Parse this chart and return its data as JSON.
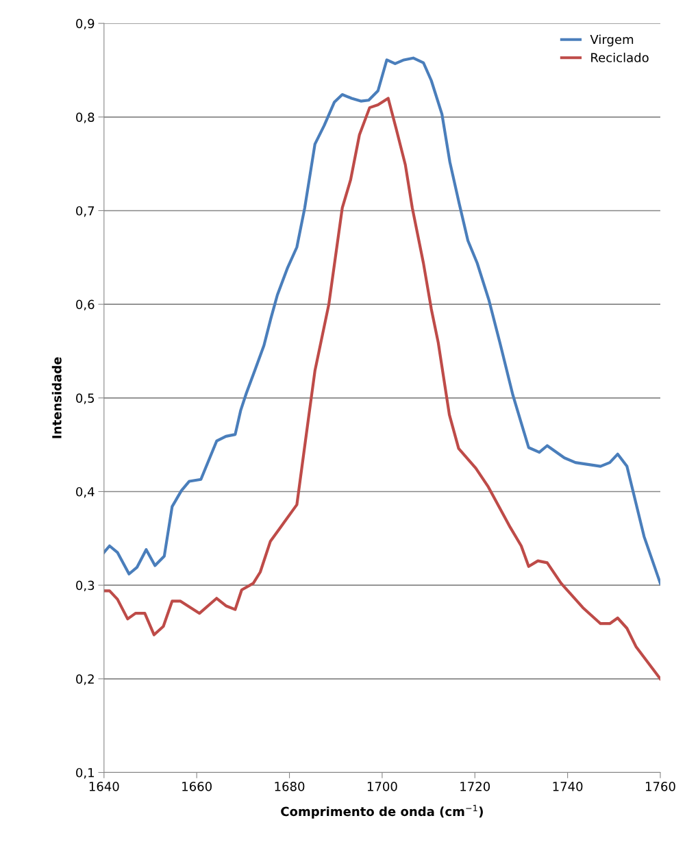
{
  "chart_data": {
    "type": "line",
    "xlabel": "Comprimento de onda (cm$^{−1}$)",
    "ylabel": "Intensidade",
    "xlim": [
      1640,
      1760
    ],
    "xticks": [
      1640,
      1660,
      1680,
      1700,
      1720,
      1740,
      1760
    ],
    "ylim": [
      0.1,
      0.9
    ],
    "yticks": [
      {
        "value": 0.1,
        "label": "0,1"
      },
      {
        "value": 0.2,
        "label": "0,2"
      },
      {
        "value": 0.3,
        "label": "0,3"
      },
      {
        "value": 0.4,
        "label": "0,4"
      },
      {
        "value": 0.5,
        "label": "0,5"
      },
      {
        "value": 0.6,
        "label": "0,6"
      },
      {
        "value": 0.7,
        "label": "0,7"
      },
      {
        "value": 0.8,
        "label": "0,8"
      },
      {
        "value": 0.9,
        "label": "0,9"
      }
    ],
    "grid": "y",
    "legend": "top right",
    "marker": "none",
    "line_style": "solid",
    "series": [
      {
        "name": "Virgem",
        "color": "#4a7ebb",
        "x": [
          1640,
          1641.2,
          1642.9,
          1645.4,
          1647.1,
          1649.1,
          1651.0,
          1653.0,
          1654.7,
          1656.7,
          1658.4,
          1660.9,
          1664.3,
          1666.3,
          1668.3,
          1669.5,
          1670.7,
          1672.5,
          1674.5,
          1676.0,
          1677.4,
          1679.6,
          1681.6,
          1683.3,
          1685.5,
          1687.5,
          1689.7,
          1691.4,
          1693.4,
          1695.4,
          1697.1,
          1699.1,
          1701.0,
          1702.8,
          1704.7,
          1706.7,
          1708.9,
          1710.6,
          1712.9,
          1714.6,
          1716.6,
          1718.5,
          1720.5,
          1723.0,
          1725.4,
          1728.2,
          1731.6,
          1733.9,
          1735.6,
          1739.3,
          1741.7,
          1747.1,
          1749.1,
          1750.8,
          1752.8,
          1756.5,
          1760
        ],
        "values": [
          0.335,
          0.342,
          0.335,
          0.312,
          0.319,
          0.338,
          0.321,
          0.331,
          0.384,
          0.401,
          0.411,
          0.413,
          0.454,
          0.459,
          0.461,
          0.487,
          0.505,
          0.529,
          0.556,
          0.585,
          0.61,
          0.639,
          0.661,
          0.703,
          0.771,
          0.791,
          0.816,
          0.824,
          0.82,
          0.817,
          0.818,
          0.828,
          0.861,
          0.857,
          0.861,
          0.863,
          0.858,
          0.839,
          0.803,
          0.752,
          0.708,
          0.668,
          0.644,
          0.605,
          0.559,
          0.503,
          0.447,
          0.442,
          0.449,
          0.436,
          0.431,
          0.427,
          0.431,
          0.44,
          0.427,
          0.352,
          0.302
        ]
      },
      {
        "name": "Reciclado",
        "color": "#be4b48",
        "x": [
          1640,
          1641.2,
          1642.9,
          1645.1,
          1646.8,
          1648.8,
          1650.8,
          1652.8,
          1654.7,
          1656.5,
          1660.6,
          1664.3,
          1666.3,
          1668.3,
          1669.7,
          1672.2,
          1673.7,
          1675.9,
          1678.1,
          1681.6,
          1684.1,
          1685.5,
          1688.5,
          1691.4,
          1693.2,
          1695.1,
          1697.3,
          1699.1,
          1701.3,
          1703.0,
          1705.0,
          1706.5,
          1708.9,
          1710.6,
          1712.1,
          1714.5,
          1716.5,
          1720.2,
          1722.9,
          1727.6,
          1730.0,
          1731.6,
          1733.6,
          1735.6,
          1738.6,
          1743.3,
          1747.1,
          1749.1,
          1750.8,
          1752.8,
          1754.8,
          1760
        ],
        "values": [
          0.294,
          0.294,
          0.285,
          0.264,
          0.27,
          0.27,
          0.247,
          0.256,
          0.283,
          0.283,
          0.27,
          0.286,
          0.278,
          0.274,
          0.295,
          0.302,
          0.314,
          0.347,
          0.362,
          0.386,
          0.478,
          0.529,
          0.6,
          0.703,
          0.733,
          0.781,
          0.81,
          0.813,
          0.82,
          0.788,
          0.749,
          0.703,
          0.644,
          0.595,
          0.559,
          0.482,
          0.446,
          0.425,
          0.405,
          0.362,
          0.342,
          0.32,
          0.326,
          0.324,
          0.302,
          0.276,
          0.259,
          0.259,
          0.265,
          0.254,
          0.234,
          0.2
        ]
      }
    ]
  }
}
